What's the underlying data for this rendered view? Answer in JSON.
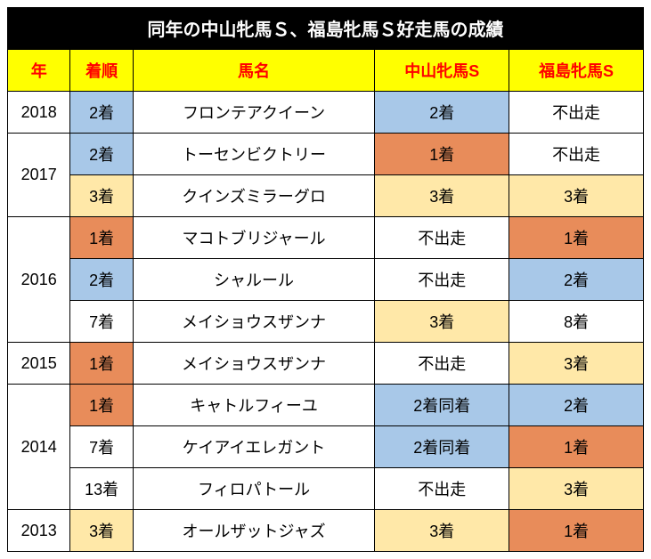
{
  "title": "同年の中山牝馬Ｓ、福島牝馬Ｓ好走馬の成績",
  "colors": {
    "header_bg": "#ffff00",
    "header_text": "#ff0000",
    "c1": "#e88c5a",
    "c2": "#a8c8e8",
    "c3": "#ffe8a8",
    "plain": "#ffffff"
  },
  "headers": [
    "年",
    "着順",
    "馬名",
    "中山牝馬S",
    "福島牝馬S"
  ],
  "rows": [
    {
      "year": "2018",
      "rowspan": 1,
      "rank": "2着",
      "rank_c": "c2",
      "name": "フロンテアクイーン",
      "r1": "2着",
      "r1_c": "c2",
      "r2": "不出走",
      "r2_c": "plain"
    },
    {
      "year": "2017",
      "rowspan": 2,
      "rank": "2着",
      "rank_c": "c2",
      "name": "トーセンビクトリー",
      "r1": "1着",
      "r1_c": "c1",
      "r2": "不出走",
      "r2_c": "plain"
    },
    {
      "year": "",
      "rowspan": 0,
      "rank": "3着",
      "rank_c": "c3",
      "name": "クインズミラーグロ",
      "r1": "3着",
      "r1_c": "c3",
      "r2": "3着",
      "r2_c": "c3"
    },
    {
      "year": "2016",
      "rowspan": 3,
      "rank": "1着",
      "rank_c": "c1",
      "name": "マコトブリジャール",
      "r1": "不出走",
      "r1_c": "plain",
      "r2": "1着",
      "r2_c": "c1"
    },
    {
      "year": "",
      "rowspan": 0,
      "rank": "2着",
      "rank_c": "c2",
      "name": "シャルール",
      "r1": "不出走",
      "r1_c": "plain",
      "r2": "2着",
      "r2_c": "c2"
    },
    {
      "year": "",
      "rowspan": 0,
      "rank": "7着",
      "rank_c": "plain",
      "name": "メイショウスザンナ",
      "r1": "3着",
      "r1_c": "c3",
      "r2": "8着",
      "r2_c": "plain"
    },
    {
      "year": "2015",
      "rowspan": 1,
      "rank": "1着",
      "rank_c": "c1",
      "name": "メイショウスザンナ",
      "r1": "不出走",
      "r1_c": "plain",
      "r2": "3着",
      "r2_c": "c3"
    },
    {
      "year": "2014",
      "rowspan": 3,
      "rank": "1着",
      "rank_c": "c1",
      "name": "キャトルフィーユ",
      "r1": "2着同着",
      "r1_c": "c2",
      "r2": "2着",
      "r2_c": "c2"
    },
    {
      "year": "",
      "rowspan": 0,
      "rank": "7着",
      "rank_c": "plain",
      "name": "ケイアイエレガント",
      "r1": "2着同着",
      "r1_c": "c2",
      "r2": "1着",
      "r2_c": "c1"
    },
    {
      "year": "",
      "rowspan": 0,
      "rank": "13着",
      "rank_c": "plain",
      "name": "フィロパトール",
      "r1": "不出走",
      "r1_c": "plain",
      "r2": "3着",
      "r2_c": "c3"
    },
    {
      "year": "2013",
      "rowspan": 1,
      "rank": "3着",
      "rank_c": "c3",
      "name": "オールザットジャズ",
      "r1": "3着",
      "r1_c": "c3",
      "r2": "1着",
      "r2_c": "c1"
    }
  ]
}
